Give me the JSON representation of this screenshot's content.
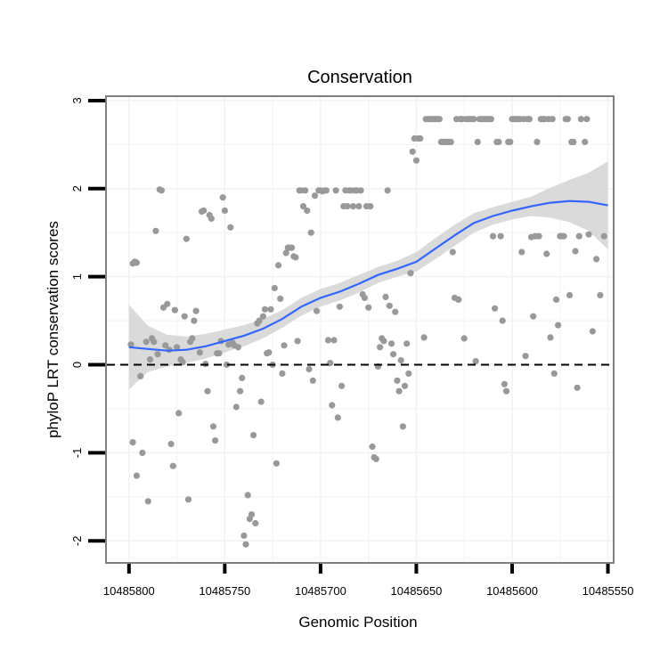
{
  "chart_data": {
    "type": "scatter",
    "title": "Conservation",
    "xlabel": "Genomic Position",
    "ylabel": "phyloP LRT conservation scores",
    "x_reversed": true,
    "xlim": [
      10485812,
      10485547
    ],
    "ylim": [
      -2.25,
      3.05
    ],
    "xticks": [
      10485800,
      10485750,
      10485700,
      10485650,
      10485600,
      10485550
    ],
    "xtick_labels": [
      "10485800",
      "10485750",
      "10485700",
      "10485650",
      "10485600",
      "10485550"
    ],
    "yticks": [
      -2,
      -1,
      0,
      1,
      2,
      3
    ],
    "ytick_labels": [
      "-2",
      "-1",
      "0",
      "1",
      "2",
      "3"
    ],
    "grid": true,
    "reference_line": {
      "y": 0,
      "style": "dashed",
      "color": "#000000"
    },
    "colors": {
      "points": "#999999",
      "smooth": "#3366ff",
      "band": "#d3d3d3",
      "panel_border": "#7f7f7f",
      "grid": "#f2f2f2"
    },
    "series": [
      {
        "kind": "points",
        "points": [
          [
            10485799,
            0.23
          ],
          [
            10485798,
            1.15
          ],
          [
            10485797,
            1.17
          ],
          [
            10485796,
            1.16
          ],
          [
            10485798,
            -0.88
          ],
          [
            10485796,
            -1.26
          ],
          [
            10485794,
            -0.13
          ],
          [
            10485793,
            -1.0
          ],
          [
            10485791,
            0.26
          ],
          [
            10485790,
            -1.55
          ],
          [
            10485789,
            0.06
          ],
          [
            10485788,
            0.3
          ],
          [
            10485787,
            0.26
          ],
          [
            10485786,
            1.52
          ],
          [
            10485785,
            0.12
          ],
          [
            10485784,
            1.99
          ],
          [
            10485783,
            1.98
          ],
          [
            10485782,
            0.65
          ],
          [
            10485781,
            0.22
          ],
          [
            10485780,
            0.69
          ],
          [
            10485779,
            0.17
          ],
          [
            10485778,
            -0.9
          ],
          [
            10485777,
            -1.15
          ],
          [
            10485776,
            0.62
          ],
          [
            10485775,
            0.2
          ],
          [
            10485774,
            -0.55
          ],
          [
            10485773,
            0.06
          ],
          [
            10485772,
            0.03
          ],
          [
            10485771,
            0.55
          ],
          [
            10485770,
            1.43
          ],
          [
            10485769,
            -1.53
          ],
          [
            10485768,
            0.26
          ],
          [
            10485767,
            0.3
          ],
          [
            10485766,
            0.5
          ],
          [
            10485765,
            0.61
          ],
          [
            10485763,
            0.14
          ],
          [
            10485762,
            1.74
          ],
          [
            10485761,
            1.75
          ],
          [
            10485760,
            0.01
          ],
          [
            10485759,
            -0.3
          ],
          [
            10485758,
            1.7
          ],
          [
            10485757,
            1.66
          ],
          [
            10485756,
            -0.7
          ],
          [
            10485755,
            -0.86
          ],
          [
            10485754,
            0.13
          ],
          [
            10485753,
            0.13
          ],
          [
            10485752,
            0.27
          ],
          [
            10485751,
            1.9
          ],
          [
            10485750,
            1.75
          ],
          [
            10485749,
            0.0
          ],
          [
            10485748,
            0.23
          ],
          [
            10485747,
            1.56
          ],
          [
            10485746,
            0.25
          ],
          [
            10485745,
            0.22
          ],
          [
            10485744,
            -0.48
          ],
          [
            10485743,
            0.2
          ],
          [
            10485742,
            -0.3
          ],
          [
            10485741,
            -0.15
          ],
          [
            10485740,
            -1.94
          ],
          [
            10485739,
            -2.04
          ],
          [
            10485738,
            -1.48
          ],
          [
            10485737,
            -1.75
          ],
          [
            10485736,
            -1.7
          ],
          [
            10485735,
            -0.8
          ],
          [
            10485734,
            -1.8
          ],
          [
            10485733,
            0.47
          ],
          [
            10485732,
            0.5
          ],
          [
            10485731,
            -0.42
          ],
          [
            10485730,
            0.55
          ],
          [
            10485729,
            0.63
          ],
          [
            10485728,
            0.13
          ],
          [
            10485727,
            0.14
          ],
          [
            10485726,
            0.63
          ],
          [
            10485725,
            0.0
          ],
          [
            10485724,
            0.87
          ],
          [
            10485723,
            -1.12
          ],
          [
            10485722,
            1.13
          ],
          [
            10485721,
            0.75
          ],
          [
            10485720,
            -0.1
          ],
          [
            10485719,
            0.22
          ],
          [
            10485718,
            1.27
          ],
          [
            10485717,
            1.33
          ],
          [
            10485716,
            1.33
          ],
          [
            10485715,
            1.33
          ],
          [
            10485714,
            1.23
          ],
          [
            10485713,
            1.22
          ],
          [
            10485712,
            0.27
          ],
          [
            10485711,
            1.98
          ],
          [
            10485710,
            1.98
          ],
          [
            10485709,
            1.8
          ],
          [
            10485708,
            1.98
          ],
          [
            10485707,
            1.75
          ],
          [
            10485706,
            -0.05
          ],
          [
            10485705,
            1.5
          ],
          [
            10485704,
            -0.18
          ],
          [
            10485703,
            1.92
          ],
          [
            10485702,
            0.61
          ],
          [
            10485701,
            1.98
          ],
          [
            10485700,
            1.98
          ],
          [
            10485699,
            1.97
          ],
          [
            10485698,
            1.98
          ],
          [
            10485697,
            1.98
          ],
          [
            10485696,
            0.28
          ],
          [
            10485695,
            0.02
          ],
          [
            10485694,
            -0.46
          ],
          [
            10485693,
            0.28
          ],
          [
            10485692,
            1.98
          ],
          [
            10485691,
            -0.6
          ],
          [
            10485690,
            0.66
          ],
          [
            10485689,
            -0.24
          ],
          [
            10485688,
            1.8
          ],
          [
            10485687,
            1.98
          ],
          [
            10485686,
            1.8
          ],
          [
            10485685,
            1.98
          ],
          [
            10485684,
            1.98
          ],
          [
            10485683,
            1.8
          ],
          [
            10485682,
            1.98
          ],
          [
            10485681,
            1.98
          ],
          [
            10485680,
            1.8
          ],
          [
            10485679,
            1.98
          ],
          [
            10485678,
            0.8
          ],
          [
            10485677,
            0.76
          ],
          [
            10485676,
            1.8
          ],
          [
            10485675,
            0.65
          ],
          [
            10485674,
            1.8
          ],
          [
            10485673,
            -0.93
          ],
          [
            10485672,
            -1.05
          ],
          [
            10485671,
            -1.07
          ],
          [
            10485670,
            -0.02
          ],
          [
            10485669,
            0.2
          ],
          [
            10485668,
            0.3
          ],
          [
            10485667,
            0.27
          ],
          [
            10485666,
            0.77
          ],
          [
            10485665,
            1.98
          ],
          [
            10485664,
            0.67
          ],
          [
            10485663,
            0.24
          ],
          [
            10485662,
            0.12
          ],
          [
            10485661,
            0.6
          ],
          [
            10485660,
            -0.18
          ],
          [
            10485659,
            -0.3
          ],
          [
            10485658,
            0.05
          ],
          [
            10485657,
            -0.7
          ],
          [
            10485656,
            -0.24
          ],
          [
            10485655,
            0.24
          ],
          [
            10485654,
            -0.1
          ],
          [
            10485653,
            1.04
          ],
          [
            10485652,
            2.42
          ],
          [
            10485651,
            2.57
          ],
          [
            10485650,
            2.32
          ],
          [
            10485649,
            2.57
          ],
          [
            10485648,
            2.57
          ],
          [
            10485646,
            0.31
          ],
          [
            10485645,
            2.79
          ],
          [
            10485644,
            2.79
          ],
          [
            10485643,
            2.79
          ],
          [
            10485642,
            2.79
          ],
          [
            10485641,
            2.79
          ],
          [
            10485640,
            2.79
          ],
          [
            10485639,
            2.79
          ],
          [
            10485638,
            2.79
          ],
          [
            10485637,
            2.53
          ],
          [
            10485636,
            2.53
          ],
          [
            10485635,
            2.53
          ],
          [
            10485634,
            2.53
          ],
          [
            10485633,
            2.53
          ],
          [
            10485632,
            2.53
          ],
          [
            10485631,
            1.28
          ],
          [
            10485630,
            0.76
          ],
          [
            10485629,
            2.79
          ],
          [
            10485628,
            0.74
          ],
          [
            10485627,
            2.79
          ],
          [
            10485626,
            2.79
          ],
          [
            10485625,
            0.3
          ],
          [
            10485624,
            2.79
          ],
          [
            10485623,
            2.79
          ],
          [
            10485622,
            2.79
          ],
          [
            10485621,
            2.79
          ],
          [
            10485620,
            2.79
          ],
          [
            10485619,
            0.04
          ],
          [
            10485618,
            2.53
          ],
          [
            10485617,
            2.79
          ],
          [
            10485616,
            2.79
          ],
          [
            10485615,
            2.79
          ],
          [
            10485614,
            2.79
          ],
          [
            10485613,
            2.79
          ],
          [
            10485612,
            2.79
          ],
          [
            10485611,
            2.79
          ],
          [
            10485610,
            1.46
          ],
          [
            10485609,
            0.64
          ],
          [
            10485608,
            2.53
          ],
          [
            10485607,
            2.53
          ],
          [
            10485606,
            1.46
          ],
          [
            10485605,
            0.5
          ],
          [
            10485604,
            -0.22
          ],
          [
            10485603,
            -0.3
          ],
          [
            10485602,
            2.53
          ],
          [
            10485601,
            2.53
          ],
          [
            10485600,
            2.79
          ],
          [
            10485599,
            2.79
          ],
          [
            10485598,
            2.79
          ],
          [
            10485597,
            2.79
          ],
          [
            10485596,
            2.79
          ],
          [
            10485595,
            1.28
          ],
          [
            10485594,
            2.79
          ],
          [
            10485593,
            0.1
          ],
          [
            10485592,
            2.79
          ],
          [
            10485591,
            2.79
          ],
          [
            10485590,
            1.45
          ],
          [
            10485589,
            0.55
          ],
          [
            10485588,
            1.46
          ],
          [
            10485587,
            2.53
          ],
          [
            10485586,
            1.46
          ],
          [
            10485585,
            2.79
          ],
          [
            10485584,
            2.79
          ],
          [
            10485583,
            2.79
          ],
          [
            10485582,
            1.26
          ],
          [
            10485581,
            2.79
          ],
          [
            10485580,
            0.31
          ],
          [
            10485579,
            2.79
          ],
          [
            10485578,
            -0.1
          ],
          [
            10485577,
            0.74
          ],
          [
            10485576,
            0.45
          ],
          [
            10485575,
            1.46
          ],
          [
            10485574,
            1.46
          ],
          [
            10485573,
            1.46
          ],
          [
            10485572,
            2.79
          ],
          [
            10485571,
            2.79
          ],
          [
            10485570,
            0.79
          ],
          [
            10485569,
            2.53
          ],
          [
            10485568,
            2.53
          ],
          [
            10485567,
            1.29
          ],
          [
            10485566,
            -0.26
          ],
          [
            10485565,
            1.46
          ],
          [
            10485564,
            2.79
          ],
          [
            10485562,
            2.53
          ],
          [
            10485561,
            2.79
          ],
          [
            10485560,
            1.48
          ],
          [
            10485558,
            0.38
          ],
          [
            10485556,
            1.2
          ],
          [
            10485554,
            0.79
          ],
          [
            10485552,
            1.46
          ]
        ]
      },
      {
        "kind": "smooth",
        "x": [
          10485800,
          10485790,
          10485780,
          10485770,
          10485760,
          10485750,
          10485740,
          10485730,
          10485720,
          10485710,
          10485700,
          10485690,
          10485680,
          10485670,
          10485660,
          10485650,
          10485640,
          10485630,
          10485620,
          10485610,
          10485600,
          10485590,
          10485580,
          10485570,
          10485560,
          10485550
        ],
        "y": [
          0.2,
          0.18,
          0.16,
          0.17,
          0.21,
          0.27,
          0.33,
          0.41,
          0.52,
          0.66,
          0.76,
          0.83,
          0.92,
          1.02,
          1.09,
          1.17,
          1.32,
          1.47,
          1.61,
          1.69,
          1.75,
          1.8,
          1.84,
          1.86,
          1.85,
          1.81
        ],
        "lower": [
          -0.28,
          -0.08,
          -0.02,
          0.02,
          0.07,
          0.14,
          0.21,
          0.3,
          0.42,
          0.56,
          0.66,
          0.73,
          0.82,
          0.93,
          1.0,
          1.06,
          1.2,
          1.35,
          1.5,
          1.59,
          1.65,
          1.69,
          1.67,
          1.62,
          1.52,
          1.31
        ],
        "upper": [
          0.68,
          0.44,
          0.34,
          0.32,
          0.35,
          0.4,
          0.45,
          0.52,
          0.62,
          0.76,
          0.86,
          0.93,
          1.02,
          1.11,
          1.18,
          1.28,
          1.44,
          1.59,
          1.72,
          1.79,
          1.85,
          1.91,
          2.01,
          2.1,
          2.18,
          2.31
        ]
      }
    ]
  }
}
